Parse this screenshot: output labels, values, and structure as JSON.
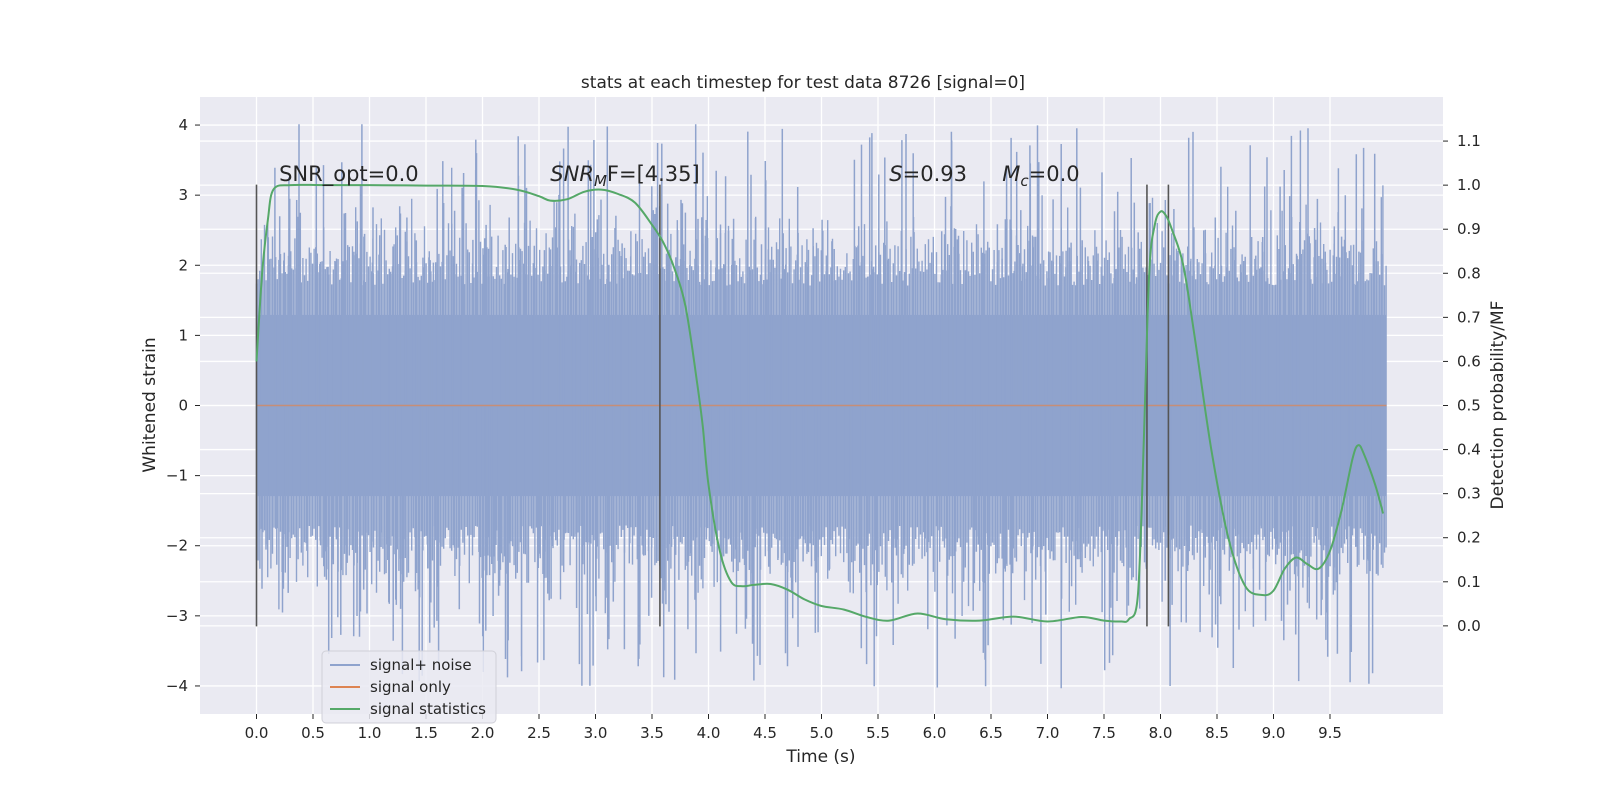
{
  "chart_data": {
    "type": "line",
    "title": "stats at each timestep for test data 8726 [signal=0]",
    "xlabel": "Time (s)",
    "ylabel_left": "Whitened strain",
    "ylabel_right": "Detection probability/MF",
    "xlim": [
      -0.5,
      10.5
    ],
    "ylim_left": [
      -4.4,
      4.4
    ],
    "ylim_right": [
      -0.2,
      1.2
    ],
    "x_ticks": [
      "0.0",
      "0.5",
      "1.0",
      "1.5",
      "2.0",
      "2.5",
      "3.0",
      "3.5",
      "4.0",
      "4.5",
      "5.0",
      "5.5",
      "6.0",
      "6.5",
      "7.0",
      "7.5",
      "8.0",
      "8.5",
      "9.0",
      "9.5"
    ],
    "y_ticks_left": [
      "−4",
      "−3",
      "−2",
      "−1",
      "0",
      "1",
      "2",
      "3",
      "4"
    ],
    "y_ticks_right": [
      "0.0",
      "0.1",
      "0.2",
      "0.3",
      "0.4",
      "0.5",
      "0.6",
      "0.7",
      "0.8",
      "0.9",
      "1.0",
      "1.1"
    ],
    "grid": true,
    "legend_position": "lower-left",
    "annotations": [
      {
        "id": "snr-opt",
        "text": "SNR_opt=0.0",
        "x": 0.2
      },
      {
        "id": "snr-mf",
        "text": "SNR_MF=[4.35]",
        "x": 2.6,
        "base": "SNR",
        "sub": "M",
        "rest": "F=[4.35]"
      },
      {
        "id": "s-val",
        "text": "S=0.93",
        "x": 5.6,
        "base": "S",
        "rest": "=0.93"
      },
      {
        "id": "mc-val",
        "text": "Mc=0.0",
        "x": 6.6,
        "base": "M",
        "sub": "c",
        "rest": "=0.0"
      }
    ],
    "annotation_y_right": 1.0,
    "vertical_markers": {
      "x": [
        0.0,
        3.57,
        7.88,
        8.07
      ],
      "ymin_left": -3.15,
      "ymax_left": 3.15
    },
    "series": [
      {
        "name": "signal+ noise",
        "color": "#8fa3cd",
        "axis": "left",
        "kind": "dense-noise",
        "x_range": [
          0.0,
          10.0
        ],
        "typical_envelope": [
          -1.9,
          1.9
        ],
        "peak_range": [
          -4.05,
          4.05
        ]
      },
      {
        "name": "signal only",
        "color": "#dd8452",
        "axis": "left",
        "x": [
          0.0,
          10.0
        ],
        "y": [
          0.0,
          0.0
        ]
      },
      {
        "name": "signal statistics",
        "color": "#55a868",
        "axis": "right",
        "x": [
          0.0,
          0.05,
          0.1,
          0.15,
          0.3,
          0.6,
          1.0,
          1.5,
          2.0,
          2.3,
          2.5,
          2.6,
          2.75,
          2.9,
          3.05,
          3.2,
          3.35,
          3.5,
          3.6,
          3.7,
          3.8,
          3.9,
          3.95,
          4.0,
          4.1,
          4.2,
          4.3,
          4.4,
          4.55,
          4.7,
          4.85,
          5.0,
          5.2,
          5.4,
          5.6,
          5.85,
          6.1,
          6.4,
          6.7,
          7.0,
          7.3,
          7.5,
          7.65,
          7.72,
          7.8,
          7.85,
          7.9,
          7.95,
          8.0,
          8.05,
          8.1,
          8.2,
          8.3,
          8.45,
          8.6,
          8.75,
          8.9,
          9.0,
          9.1,
          9.2,
          9.3,
          9.4,
          9.5,
          9.6,
          9.7,
          9.75,
          9.8,
          9.9,
          9.97
        ],
        "y": [
          0.6,
          0.8,
          0.92,
          0.99,
          1.0,
          1.0,
          1.0,
          0.999,
          0.998,
          0.99,
          0.975,
          0.965,
          0.968,
          0.985,
          0.99,
          0.98,
          0.96,
          0.91,
          0.87,
          0.81,
          0.72,
          0.55,
          0.45,
          0.32,
          0.17,
          0.1,
          0.09,
          0.093,
          0.095,
          0.082,
          0.06,
          0.045,
          0.037,
          0.02,
          0.012,
          0.028,
          0.015,
          0.012,
          0.021,
          0.01,
          0.02,
          0.012,
          0.01,
          0.015,
          0.07,
          0.4,
          0.8,
          0.91,
          0.94,
          0.93,
          0.9,
          0.82,
          0.66,
          0.4,
          0.2,
          0.09,
          0.07,
          0.08,
          0.13,
          0.155,
          0.14,
          0.13,
          0.17,
          0.26,
          0.38,
          0.41,
          0.39,
          0.32,
          0.255
        ]
      }
    ]
  }
}
